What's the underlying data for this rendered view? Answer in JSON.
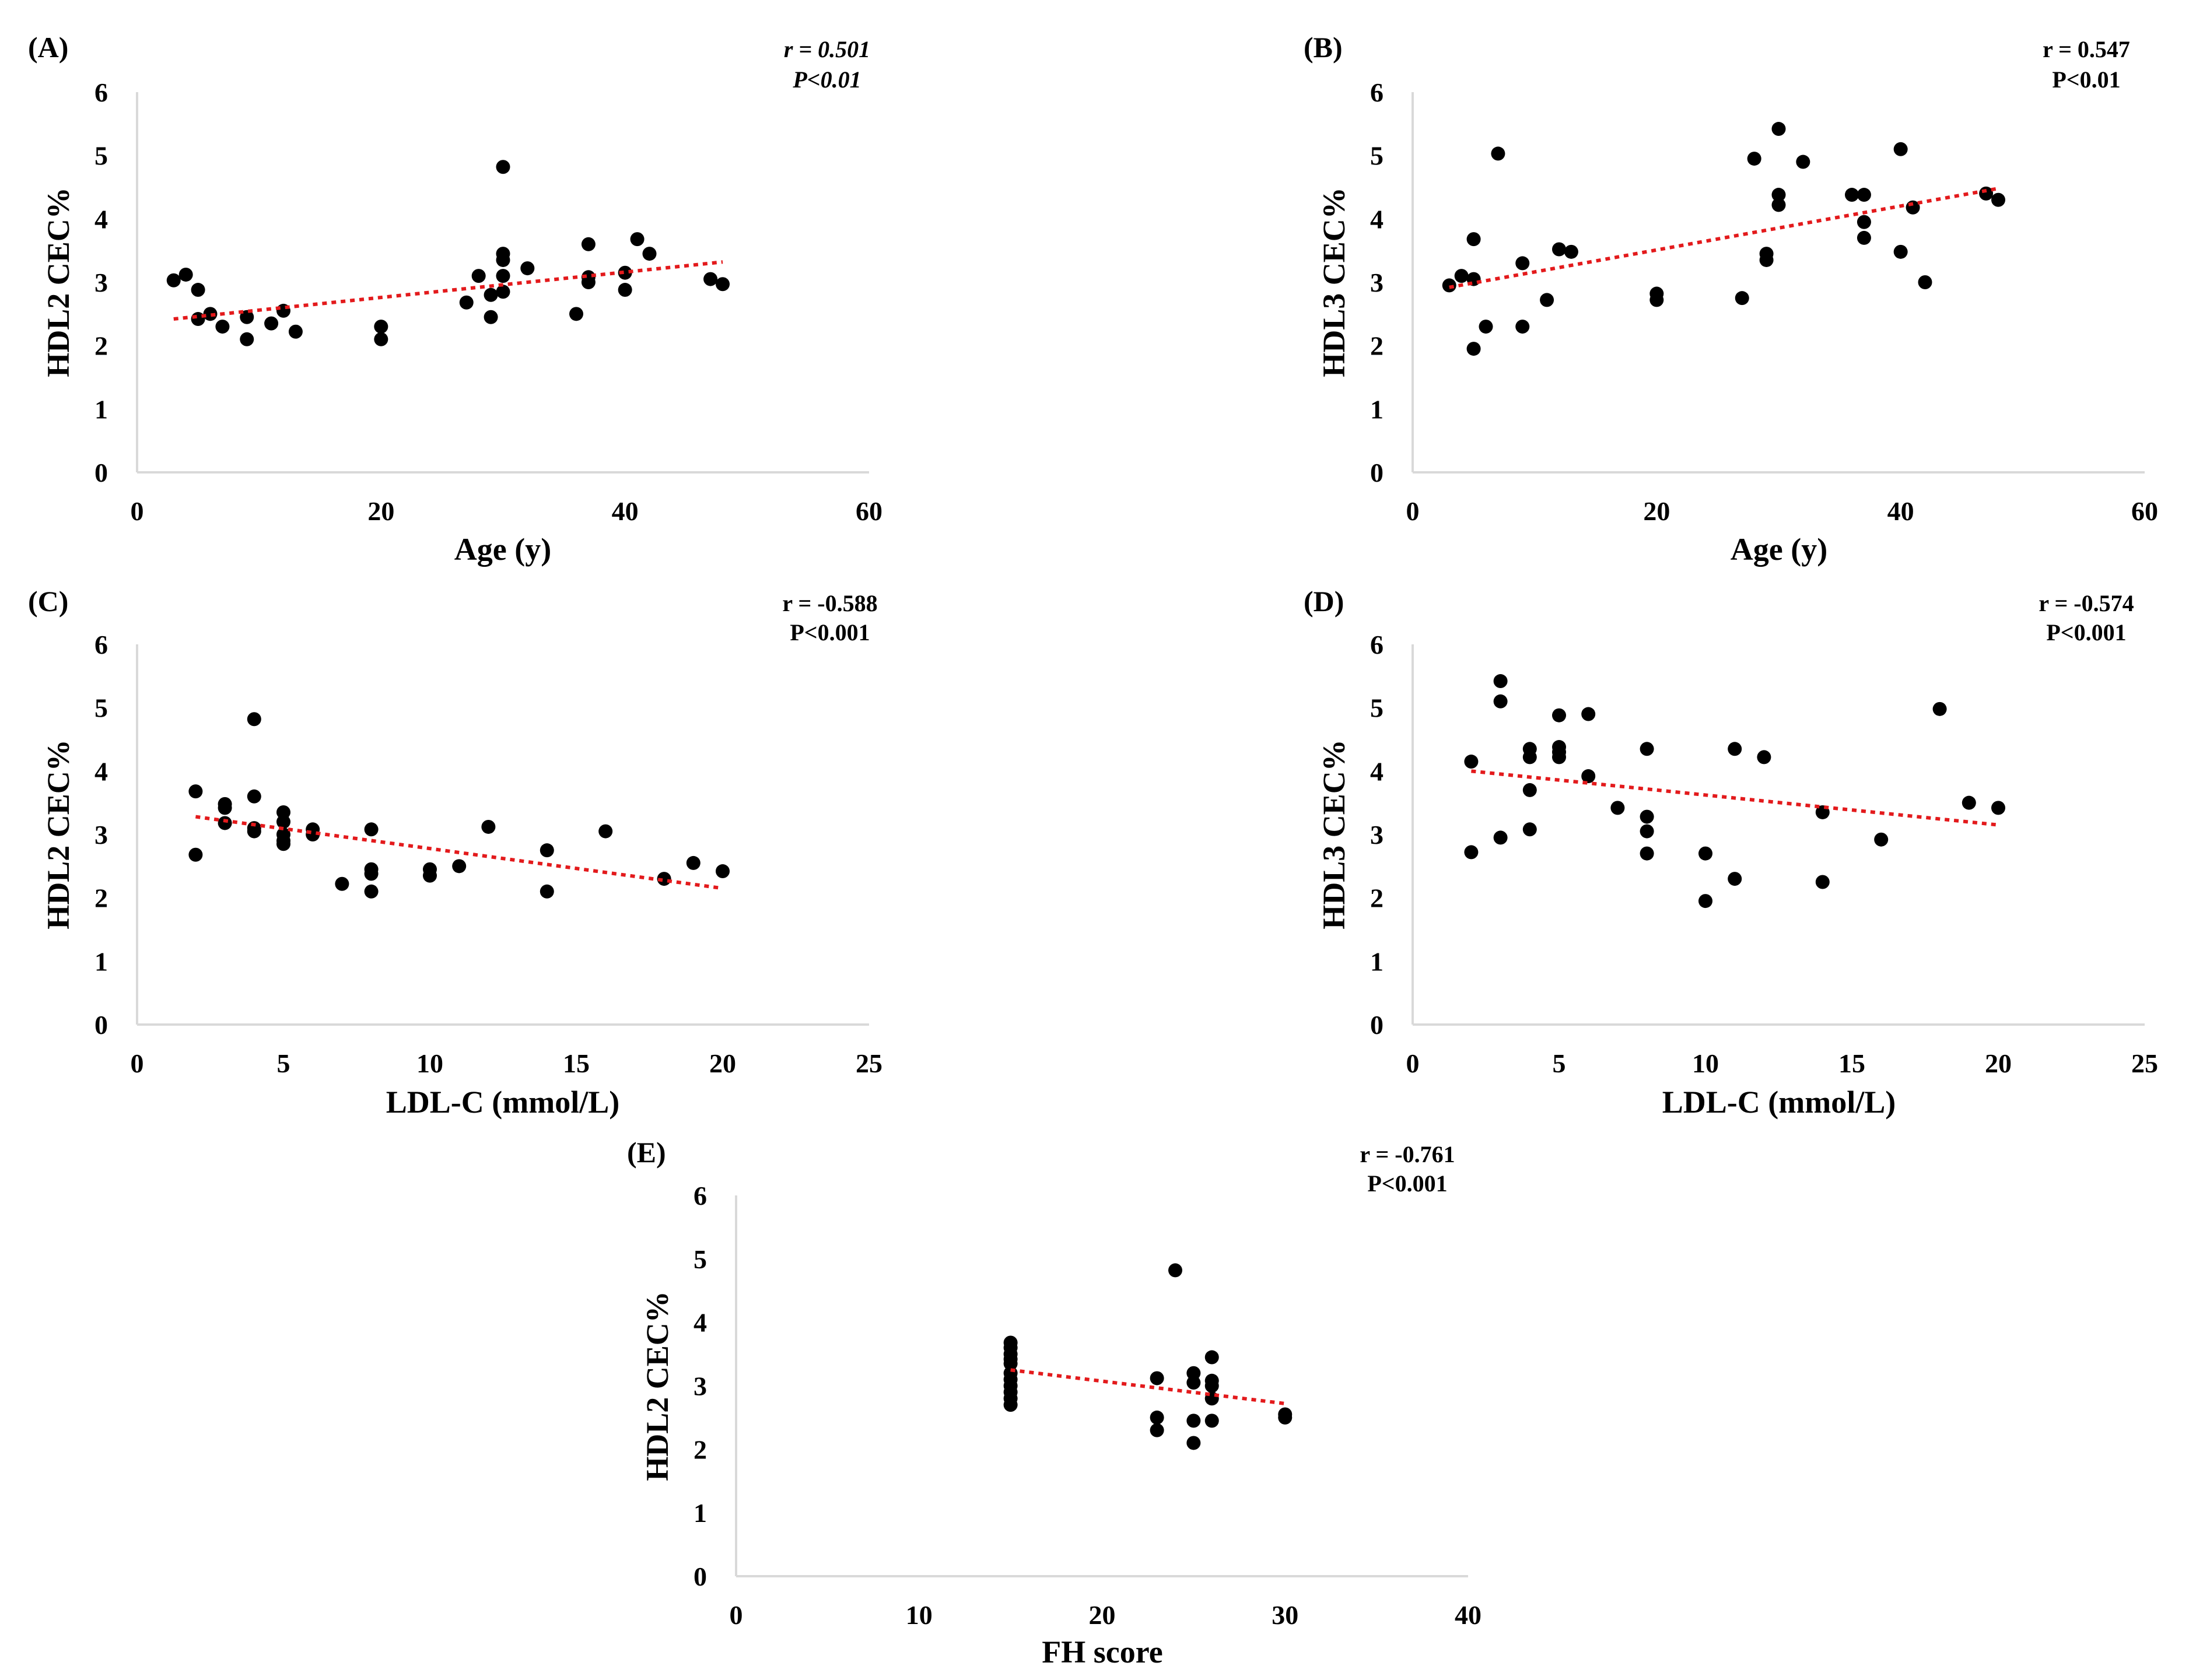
{
  "figure": {
    "marker_color": "#000000",
    "trend_color": "#e31a1c",
    "axis_color": "#d9d9d9"
  },
  "chart_data": [
    {
      "id": "A",
      "type": "scatter",
      "panel_label": "(A)",
      "stat_r": "r = 0.501",
      "stat_p": "P<0.01",
      "stat_italic": true,
      "xlabel": "Age (y)",
      "ylabel": "HDL2 CEC%",
      "xlim": [
        0,
        60
      ],
      "ylim": [
        0,
        6
      ],
      "xticks": [
        0,
        20,
        40,
        60
      ],
      "yticks": [
        0,
        1,
        2,
        3,
        4,
        5,
        6
      ],
      "trendline": [
        [
          3,
          2.42
        ],
        [
          48,
          3.32
        ]
      ],
      "points": [
        [
          3,
          3.03
        ],
        [
          4,
          3.12
        ],
        [
          5,
          2.88
        ],
        [
          5,
          2.42
        ],
        [
          6,
          2.5
        ],
        [
          7,
          2.3
        ],
        [
          9,
          2.45
        ],
        [
          9,
          2.1
        ],
        [
          11,
          2.35
        ],
        [
          12,
          2.55
        ],
        [
          13,
          2.22
        ],
        [
          20,
          2.3
        ],
        [
          20,
          2.1
        ],
        [
          27,
          2.68
        ],
        [
          28,
          3.1
        ],
        [
          29,
          2.8
        ],
        [
          29,
          2.45
        ],
        [
          30,
          4.82
        ],
        [
          30,
          3.45
        ],
        [
          30,
          3.35
        ],
        [
          30,
          3.1
        ],
        [
          30,
          2.85
        ],
        [
          32,
          3.22
        ],
        [
          36,
          2.5
        ],
        [
          37,
          3.6
        ],
        [
          37,
          3.08
        ],
        [
          37,
          3.0
        ],
        [
          40,
          3.15
        ],
        [
          40,
          2.88
        ],
        [
          41,
          3.68
        ],
        [
          42,
          3.45
        ],
        [
          47,
          3.05
        ],
        [
          48,
          2.97
        ]
      ]
    },
    {
      "id": "B",
      "type": "scatter",
      "panel_label": "(B)",
      "stat_r": "r = 0.547",
      "stat_p": "P<0.01",
      "stat_italic": false,
      "xlabel": "Age (y)",
      "ylabel": "HDL3 CEC%",
      "xlim": [
        0,
        60
      ],
      "ylim": [
        0,
        6
      ],
      "xticks": [
        0,
        20,
        40,
        60
      ],
      "yticks": [
        0,
        1,
        2,
        3,
        4,
        5,
        6
      ],
      "trendline": [
        [
          3,
          2.92
        ],
        [
          48,
          4.48
        ]
      ],
      "points": [
        [
          3,
          2.95
        ],
        [
          4,
          3.1
        ],
        [
          5,
          3.68
        ],
        [
          5,
          3.05
        ],
        [
          5,
          1.95
        ],
        [
          6,
          2.3
        ],
        [
          7,
          5.03
        ],
        [
          9,
          3.3
        ],
        [
          9,
          2.3
        ],
        [
          11,
          2.72
        ],
        [
          12,
          3.52
        ],
        [
          13,
          3.48
        ],
        [
          20,
          2.82
        ],
        [
          20,
          2.72
        ],
        [
          27,
          2.75
        ],
        [
          28,
          4.95
        ],
        [
          29,
          3.45
        ],
        [
          29,
          3.35
        ],
        [
          30,
          5.42
        ],
        [
          30,
          4.38
        ],
        [
          30,
          4.22
        ],
        [
          32,
          4.9
        ],
        [
          36,
          4.38
        ],
        [
          37,
          4.38
        ],
        [
          37,
          3.95
        ],
        [
          37,
          3.7
        ],
        [
          40,
          5.1
        ],
        [
          40,
          3.48
        ],
        [
          41,
          4.18
        ],
        [
          42,
          3.0
        ],
        [
          47,
          4.4
        ],
        [
          48,
          4.3
        ]
      ]
    },
    {
      "id": "C",
      "type": "scatter",
      "panel_label": "(C)",
      "stat_r": "r = -0.588",
      "stat_p": "P<0.001",
      "stat_italic": false,
      "xlabel": "LDL-C (mmol/L)",
      "ylabel": "HDL2 CEC%",
      "xlim": [
        0,
        25
      ],
      "ylim": [
        0,
        6
      ],
      "xticks": [
        0,
        5,
        10,
        15,
        20,
        25
      ],
      "yticks": [
        0,
        1,
        2,
        3,
        4,
        5,
        6
      ],
      "trendline": [
        [
          2,
          3.28
        ],
        [
          20,
          2.15
        ]
      ],
      "points": [
        [
          2,
          3.68
        ],
        [
          2,
          2.68
        ],
        [
          3,
          3.48
        ],
        [
          3,
          3.42
        ],
        [
          3,
          3.18
        ],
        [
          4,
          4.82
        ],
        [
          4,
          3.6
        ],
        [
          4,
          3.1
        ],
        [
          4,
          3.05
        ],
        [
          5,
          3.35
        ],
        [
          5,
          3.2
        ],
        [
          5,
          3.0
        ],
        [
          5,
          2.9
        ],
        [
          5,
          2.85
        ],
        [
          6,
          3.08
        ],
        [
          6,
          3.0
        ],
        [
          7,
          2.22
        ],
        [
          8,
          3.08
        ],
        [
          8,
          2.45
        ],
        [
          8,
          2.38
        ],
        [
          8,
          2.1
        ],
        [
          10,
          2.45
        ],
        [
          10,
          2.35
        ],
        [
          11,
          2.5
        ],
        [
          12,
          3.12
        ],
        [
          14,
          2.75
        ],
        [
          14,
          2.1
        ],
        [
          16,
          3.05
        ],
        [
          18,
          2.3
        ],
        [
          19,
          2.55
        ],
        [
          20,
          2.42
        ]
      ]
    },
    {
      "id": "D",
      "type": "scatter",
      "panel_label": "(D)",
      "stat_r": "r = -0.574",
      "stat_p": "P<0.001",
      "stat_italic": false,
      "xlabel": "LDL-C (mmol/L)",
      "ylabel": "HDL3 CEC%",
      "xlim": [
        0,
        25
      ],
      "ylim": [
        0,
        6
      ],
      "xticks": [
        0,
        5,
        10,
        15,
        20,
        25
      ],
      "yticks": [
        0,
        1,
        2,
        3,
        4,
        5,
        6
      ],
      "trendline": [
        [
          2,
          4.0
        ],
        [
          20,
          3.15
        ]
      ],
      "points": [
        [
          2,
          4.15
        ],
        [
          2,
          2.72
        ],
        [
          3,
          5.42
        ],
        [
          3,
          5.1
        ],
        [
          3,
          2.95
        ],
        [
          4,
          4.35
        ],
        [
          4,
          4.22
        ],
        [
          4,
          3.7
        ],
        [
          4,
          3.08
        ],
        [
          5,
          4.88
        ],
        [
          5,
          4.38
        ],
        [
          5,
          4.3
        ],
        [
          5,
          4.22
        ],
        [
          6,
          4.9
        ],
        [
          6,
          3.92
        ],
        [
          7,
          3.42
        ],
        [
          8,
          4.35
        ],
        [
          8,
          3.28
        ],
        [
          8,
          3.05
        ],
        [
          8,
          2.7
        ],
        [
          10,
          2.7
        ],
        [
          10,
          1.95
        ],
        [
          11,
          4.35
        ],
        [
          11,
          2.3
        ],
        [
          12,
          4.22
        ],
        [
          14,
          3.35
        ],
        [
          14,
          2.25
        ],
        [
          16,
          2.92
        ],
        [
          18,
          4.98
        ],
        [
          19,
          3.5
        ],
        [
          20,
          3.42
        ]
      ]
    },
    {
      "id": "E",
      "type": "scatter",
      "panel_label": "(E)",
      "stat_r": "r = -0.761",
      "stat_p": "P<0.001",
      "stat_italic": false,
      "xlabel": "FH score",
      "ylabel": "HDL2 CEC%",
      "xlim": [
        0,
        40
      ],
      "ylim": [
        0,
        6
      ],
      "xticks": [
        0,
        10,
        20,
        30,
        40
      ],
      "yticks": [
        0,
        1,
        2,
        3,
        4,
        5,
        6
      ],
      "trendline": [
        [
          15,
          3.25
        ],
        [
          30,
          2.72
        ]
      ],
      "points": [
        [
          15,
          3.68
        ],
        [
          15,
          3.6
        ],
        [
          15,
          3.5
        ],
        [
          15,
          3.42
        ],
        [
          15,
          3.35
        ],
        [
          15,
          3.2
        ],
        [
          15,
          3.1
        ],
        [
          15,
          3.0
        ],
        [
          15,
          2.9
        ],
        [
          15,
          2.8
        ],
        [
          15,
          2.7
        ],
        [
          23,
          3.12
        ],
        [
          23,
          2.5
        ],
        [
          23,
          2.3
        ],
        [
          24,
          4.82
        ],
        [
          25,
          3.2
        ],
        [
          25,
          3.05
        ],
        [
          25,
          2.45
        ],
        [
          25,
          2.1
        ],
        [
          26,
          3.45
        ],
        [
          26,
          3.08
        ],
        [
          26,
          3.0
        ],
        [
          26,
          2.8
        ],
        [
          26,
          2.45
        ],
        [
          30,
          2.55
        ],
        [
          30,
          2.5
        ]
      ]
    }
  ]
}
